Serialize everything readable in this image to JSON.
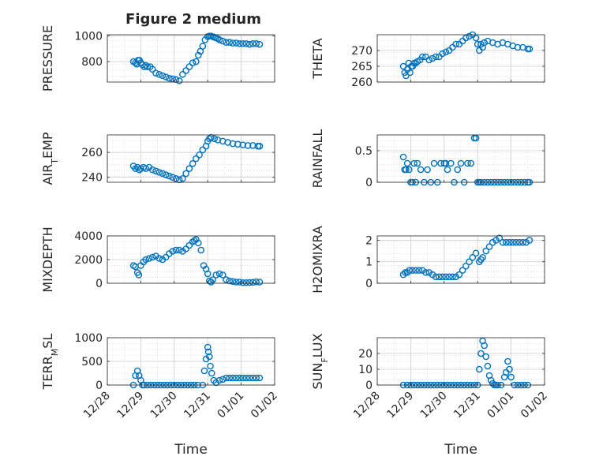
{
  "figure_title": "Figure 2 medium",
  "marker_color": "#0072BD",
  "x_tick_labels": [
    "12/28",
    "12/29",
    "12/30",
    "12/31",
    "01/01",
    "01/02"
  ],
  "x_axis_label": "Time",
  "chart_data": [
    {
      "type": "scatter",
      "ylabel": "PRESSURE",
      "xlim": [
        0,
        5
      ],
      "ylim": [
        640,
        1010
      ],
      "yticks": [
        800,
        1000
      ],
      "grid": true,
      "x": [
        0.78,
        0.84,
        0.88,
        0.92,
        0.96,
        1.0,
        1.05,
        1.1,
        1.15,
        1.2,
        1.28,
        1.35,
        1.45,
        1.55,
        1.65,
        1.75,
        1.85,
        1.95,
        2.05,
        2.15,
        2.25,
        2.35,
        2.45,
        2.55,
        2.65,
        2.72,
        2.78,
        2.85,
        2.92,
        3.0,
        3.05,
        3.1,
        3.15,
        3.2,
        3.25,
        3.3,
        3.35,
        3.45,
        3.55,
        3.65,
        3.75,
        3.85,
        3.95,
        4.05,
        4.15,
        4.25,
        4.35,
        4.45,
        4.55
      ],
      "y": [
        800,
        790,
        780,
        810,
        810,
        790,
        775,
        760,
        770,
        760,
        760,
        740,
        710,
        700,
        690,
        680,
        670,
        665,
        660,
        650,
        700,
        730,
        760,
        790,
        800,
        850,
        880,
        920,
        970,
        995,
        1000,
        1000,
        995,
        990,
        985,
        980,
        970,
        960,
        950,
        950,
        945,
        945,
        940,
        940,
        940,
        935,
        940,
        940,
        935
      ]
    },
    {
      "type": "scatter",
      "ylabel": "THETA",
      "xlim": [
        0,
        5
      ],
      "ylim": [
        260,
        275
      ],
      "yticks": [
        260,
        265,
        270
      ],
      "grid": true,
      "x": [
        0.78,
        0.82,
        0.86,
        0.9,
        0.94,
        0.98,
        1.02,
        1.06,
        1.1,
        1.15,
        1.2,
        1.28,
        1.35,
        1.45,
        1.55,
        1.65,
        1.75,
        1.85,
        1.95,
        2.05,
        2.15,
        2.25,
        2.35,
        2.45,
        2.55,
        2.65,
        2.75,
        2.85,
        2.95,
        3.0,
        3.05,
        3.1,
        3.15,
        3.2,
        3.3,
        3.45,
        3.6,
        3.75,
        3.9,
        4.05,
        4.2,
        4.35,
        4.5,
        4.55
      ],
      "y": [
        265,
        263,
        262,
        264,
        266,
        263,
        265,
        265,
        266,
        266,
        266.5,
        267,
        268,
        268,
        267,
        267.5,
        268,
        268,
        269,
        269.5,
        270,
        271,
        272,
        272,
        273,
        274,
        274.5,
        275,
        274,
        272,
        270,
        272,
        271,
        272.5,
        273,
        272.5,
        272,
        272.5,
        272,
        271.5,
        271,
        271,
        270.5,
        270.5
      ]
    },
    {
      "type": "scatter",
      "ylabel": "AIR_TEMP",
      "xlim": [
        0,
        5
      ],
      "ylim": [
        236,
        274
      ],
      "yticks": [
        240,
        260
      ],
      "grid": true,
      "x": [
        0.78,
        0.84,
        0.9,
        0.96,
        1.0,
        1.08,
        1.15,
        1.25,
        1.35,
        1.45,
        1.55,
        1.65,
        1.75,
        1.85,
        1.95,
        2.05,
        2.15,
        2.25,
        2.35,
        2.45,
        2.55,
        2.65,
        2.75,
        2.85,
        2.95,
        3.0,
        3.05,
        3.1,
        3.2,
        3.3,
        3.45,
        3.6,
        3.75,
        3.9,
        4.05,
        4.2,
        4.35,
        4.5,
        4.55
      ],
      "y": [
        249,
        247,
        248,
        246,
        247,
        248,
        247,
        248,
        246,
        245,
        244,
        243,
        242,
        241,
        240,
        239,
        238,
        239,
        243,
        247,
        251,
        255,
        258,
        262,
        265,
        269,
        271,
        272,
        271,
        270,
        269,
        268,
        267,
        266.5,
        266,
        265.5,
        265.5,
        265,
        265
      ]
    },
    {
      "type": "scatter",
      "ylabel": "RAINFALL",
      "xlim": [
        0,
        5
      ],
      "ylim": [
        0,
        0.75
      ],
      "yticks": [
        0,
        0.5
      ],
      "grid": true,
      "x": [
        0.78,
        0.82,
        0.86,
        0.9,
        0.95,
        1.0,
        1.05,
        1.1,
        1.15,
        1.2,
        1.3,
        1.4,
        1.5,
        1.6,
        1.7,
        1.8,
        1.9,
        2.0,
        2.05,
        2.1,
        2.2,
        2.3,
        2.4,
        2.5,
        2.6,
        2.7,
        2.8,
        2.9,
        2.95,
        3.0,
        3.05,
        3.1,
        3.2,
        3.3,
        3.4,
        3.5,
        3.6,
        3.7,
        3.8,
        3.9,
        4.0,
        4.1,
        4.2,
        4.3,
        4.4,
        4.5,
        4.55
      ],
      "y": [
        0.4,
        0.2,
        0.2,
        0.3,
        0.2,
        0,
        0,
        0.3,
        0,
        0.3,
        0.2,
        0,
        0.2,
        0,
        0.3,
        0,
        0.3,
        0.3,
        0.3,
        0.2,
        0.3,
        0,
        0.2,
        0.3,
        0,
        0.3,
        0.3,
        0.7,
        0.7,
        0,
        0,
        0,
        0,
        0,
        0,
        0,
        0,
        0,
        0,
        0,
        0,
        0,
        0,
        0,
        0,
        0,
        0
      ]
    },
    {
      "type": "scatter",
      "ylabel": "MIXDEPTH",
      "xlim": [
        0,
        5
      ],
      "ylim": [
        0,
        4000
      ],
      "yticks": [
        0,
        2000,
        4000
      ],
      "grid": true,
      "x": [
        0.78,
        0.84,
        0.9,
        0.94,
        1.0,
        1.08,
        1.15,
        1.25,
        1.35,
        1.45,
        1.55,
        1.65,
        1.75,
        1.85,
        1.95,
        2.05,
        2.15,
        2.25,
        2.35,
        2.45,
        2.55,
        2.6,
        2.65,
        2.72,
        2.8,
        2.88,
        2.95,
        3.0,
        3.05,
        3.1,
        3.15,
        3.25,
        3.35,
        3.45,
        3.55,
        3.65,
        3.75,
        3.85,
        3.95,
        4.05,
        4.15,
        4.25,
        4.35,
        4.45,
        4.55
      ],
      "y": [
        1500,
        1400,
        900,
        700,
        1500,
        1800,
        2000,
        2100,
        2200,
        2300,
        2100,
        2000,
        2200,
        2500,
        2700,
        2800,
        2800,
        2700,
        2900,
        3200,
        3500,
        3600,
        3700,
        3400,
        2800,
        1500,
        1200,
        800,
        200,
        100,
        300,
        700,
        800,
        700,
        300,
        200,
        150,
        100,
        100,
        50,
        50,
        60,
        80,
        120,
        100
      ]
    },
    {
      "type": "scatter",
      "ylabel": "H2OMIXRA",
      "xlim": [
        0,
        5
      ],
      "ylim": [
        0,
        2.2
      ],
      "yticks": [
        0,
        1,
        2
      ],
      "grid": true,
      "x": [
        0.78,
        0.84,
        0.9,
        0.96,
        1.05,
        1.15,
        1.25,
        1.35,
        1.45,
        1.55,
        1.65,
        1.75,
        1.85,
        1.95,
        2.05,
        2.15,
        2.25,
        2.35,
        2.45,
        2.55,
        2.65,
        2.75,
        2.85,
        2.95,
        3.05,
        3.1,
        3.15,
        3.25,
        3.35,
        3.45,
        3.55,
        3.65,
        3.75,
        3.85,
        3.95,
        4.05,
        4.15,
        4.25,
        4.35,
        4.45,
        4.55
      ],
      "y": [
        0.4,
        0.5,
        0.5,
        0.6,
        0.6,
        0.6,
        0.6,
        0.6,
        0.5,
        0.5,
        0.4,
        0.3,
        0.3,
        0.3,
        0.3,
        0.3,
        0.3,
        0.3,
        0.4,
        0.6,
        0.8,
        1.0,
        1.2,
        1.4,
        1.0,
        1.1,
        1.2,
        1.5,
        1.7,
        1.9,
        2.0,
        2.1,
        1.9,
        1.9,
        1.9,
        1.9,
        1.9,
        1.9,
        1.9,
        1.9,
        2.0
      ]
    },
    {
      "type": "scatter",
      "ylabel": "TERR_MSL",
      "xlim": [
        0,
        5
      ],
      "ylim": [
        0,
        1000
      ],
      "yticks": [
        0,
        500,
        1000
      ],
      "grid": true,
      "x": [
        0.78,
        0.84,
        0.9,
        0.95,
        1.0,
        1.05,
        1.1,
        1.2,
        1.3,
        1.4,
        1.5,
        1.6,
        1.7,
        1.8,
        1.9,
        2.0,
        2.1,
        2.2,
        2.3,
        2.4,
        2.5,
        2.6,
        2.7,
        2.85,
        2.9,
        2.95,
        3.0,
        3.02,
        3.05,
        3.08,
        3.12,
        3.18,
        3.25,
        3.35,
        3.45,
        3.55,
        3.65,
        3.75,
        3.85,
        3.95,
        4.05,
        4.15,
        4.25,
        4.35,
        4.45,
        4.55
      ],
      "y": [
        0,
        200,
        300,
        200,
        100,
        0,
        0,
        0,
        0,
        0,
        0,
        0,
        0,
        0,
        0,
        0,
        0,
        0,
        0,
        0,
        0,
        0,
        0,
        0,
        300,
        550,
        800,
        700,
        600,
        400,
        250,
        100,
        50,
        100,
        120,
        150,
        150,
        150,
        150,
        150,
        150,
        150,
        150,
        150,
        150,
        150
      ]
    },
    {
      "type": "scatter",
      "ylabel": "SUN_FLUX",
      "xlim": [
        0,
        5
      ],
      "ylim": [
        0,
        30
      ],
      "yticks": [
        0,
        10,
        20
      ],
      "grid": true,
      "x": [
        0.78,
        0.9,
        1.0,
        1.1,
        1.2,
        1.3,
        1.4,
        1.5,
        1.6,
        1.7,
        1.8,
        1.9,
        2.0,
        2.1,
        2.2,
        2.3,
        2.4,
        2.5,
        2.6,
        2.7,
        2.8,
        2.9,
        3.0,
        3.05,
        3.1,
        3.15,
        3.2,
        3.25,
        3.3,
        3.35,
        3.4,
        3.45,
        3.5,
        3.55,
        3.6,
        3.7,
        3.8,
        3.85,
        3.9,
        3.95,
        4.0,
        4.1,
        4.2,
        4.3,
        4.4,
        4.5
      ],
      "y": [
        0,
        0,
        0,
        0,
        0,
        0,
        0,
        0,
        0,
        0,
        0,
        0,
        0,
        0,
        0,
        0,
        0,
        0,
        0,
        0,
        0,
        0,
        0,
        10,
        20,
        28,
        25,
        18,
        12,
        6,
        3,
        1,
        0,
        0,
        0,
        0,
        5,
        8,
        15,
        10,
        5,
        0,
        0,
        0,
        0,
        0
      ]
    }
  ]
}
